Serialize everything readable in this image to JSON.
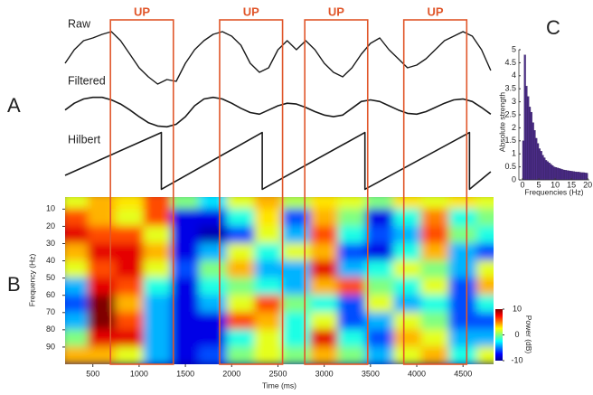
{
  "chart_data": [
    {
      "type": "line",
      "panel": "A",
      "title": "Raw",
      "color": "#1a1a1a",
      "xlim": [
        200,
        4830
      ],
      "ylim": [
        0,
        75
      ],
      "x": [
        200,
        300,
        400,
        500,
        600,
        700,
        800,
        900,
        1000,
        1100,
        1200,
        1300,
        1400,
        1500,
        1600,
        1700,
        1800,
        1900,
        2000,
        2100,
        2200,
        2300,
        2400,
        2500,
        2600,
        2700,
        2800,
        2900,
        3000,
        3100,
        3200,
        3300,
        3400,
        3500,
        3600,
        3700,
        3800,
        3900,
        4000,
        4100,
        4200,
        4300,
        4400,
        4500,
        4600,
        4700,
        4800
      ],
      "values": [
        30,
        45,
        55,
        58,
        62,
        65,
        55,
        40,
        25,
        15,
        7,
        12,
        10,
        30,
        45,
        55,
        62,
        65,
        60,
        50,
        30,
        20,
        25,
        45,
        55,
        45,
        55,
        45,
        30,
        20,
        15,
        25,
        40,
        52,
        58,
        45,
        35,
        25,
        28,
        35,
        45,
        55,
        60,
        65,
        60,
        45,
        22
      ]
    },
    {
      "type": "line",
      "title": "Filtered",
      "color": "#1a1a1a",
      "xlim": [
        200,
        4830
      ],
      "ylim": [
        0,
        45
      ],
      "x": [
        200,
        300,
        400,
        500,
        600,
        700,
        800,
        900,
        1000,
        1100,
        1200,
        1300,
        1400,
        1500,
        1600,
        1700,
        1800,
        1900,
        2000,
        2100,
        2200,
        2300,
        2400,
        2500,
        2600,
        2700,
        2800,
        2900,
        3000,
        3100,
        3200,
        3300,
        3400,
        3500,
        3600,
        3700,
        3800,
        3900,
        4000,
        4100,
        4200,
        4300,
        4400,
        4500,
        4600,
        4700,
        4800
      ],
      "values": [
        25,
        33,
        38,
        40,
        40,
        37,
        32,
        25,
        17,
        10,
        6,
        5,
        8,
        17,
        30,
        38,
        40,
        38,
        33,
        27,
        22,
        20,
        25,
        30,
        33,
        32,
        28,
        23,
        19,
        17,
        19,
        27,
        35,
        37,
        35,
        30,
        25,
        21,
        20,
        23,
        28,
        33,
        37,
        38,
        35,
        28,
        20
      ]
    },
    {
      "type": "line",
      "title": "Hilbert",
      "color": "#1a1a1a",
      "xlim": [
        200,
        4830
      ],
      "ylim": [
        -3.2,
        3.2
      ],
      "x": [
        200,
        1240,
        1240,
        2330,
        2330,
        3440,
        3440,
        4570,
        4570,
        4800
      ],
      "values": [
        -1.6,
        3.14,
        -3.14,
        3.14,
        -3.14,
        3.14,
        -3.14,
        3.14,
        -3.14,
        -1.2
      ]
    },
    {
      "type": "heatmap",
      "panel": "B",
      "xlabel": "Time (ms)",
      "ylabel": "Frequency (Hz)",
      "xlim": [
        200,
        4830
      ],
      "ylim": [
        3,
        100
      ],
      "xticks": [
        500,
        1000,
        1500,
        2000,
        2500,
        3000,
        3500,
        4000,
        4500
      ],
      "yticks": [
        10,
        20,
        30,
        40,
        50,
        60,
        70,
        80,
        90
      ],
      "x": [
        300,
        600,
        900,
        1200,
        1500,
        1800,
        2100,
        2400,
        2700,
        3000,
        3300,
        3600,
        3900,
        4200,
        4500,
        4800
      ],
      "y": [
        5,
        15,
        25,
        35,
        45,
        55,
        65,
        75,
        85,
        95
      ],
      "z": [
        [
          2,
          4,
          3,
          6,
          0,
          -3,
          2,
          4,
          1,
          3,
          2,
          0,
          3,
          2,
          3,
          2
        ],
        [
          6,
          4,
          2,
          6,
          -8,
          -8,
          -2,
          3,
          -6,
          4,
          0,
          -8,
          -2,
          5,
          -2,
          0
        ],
        [
          8,
          6,
          6,
          2,
          -8,
          -9,
          -6,
          2,
          -4,
          6,
          -2,
          -6,
          -4,
          6,
          0,
          -2
        ],
        [
          4,
          8,
          8,
          4,
          -8,
          -4,
          2,
          -2,
          2,
          4,
          -6,
          -8,
          -2,
          4,
          -4,
          -6
        ],
        [
          2,
          6,
          8,
          2,
          -6,
          0,
          4,
          -4,
          -4,
          8,
          -4,
          -2,
          2,
          0,
          -4,
          2
        ],
        [
          -4,
          8,
          6,
          -2,
          -8,
          -2,
          0,
          -2,
          -4,
          4,
          6,
          0,
          -2,
          2,
          -6,
          4
        ],
        [
          -6,
          10,
          4,
          -4,
          -8,
          -4,
          2,
          6,
          0,
          -2,
          -6,
          2,
          -4,
          -2,
          -6,
          -2
        ],
        [
          -4,
          10,
          6,
          -4,
          -8,
          -8,
          6,
          4,
          -2,
          2,
          -6,
          -4,
          2,
          0,
          -6,
          -6
        ],
        [
          0,
          8,
          8,
          -4,
          -8,
          -8,
          -2,
          2,
          -2,
          8,
          -2,
          -6,
          4,
          2,
          -4,
          -4
        ],
        [
          4,
          4,
          2,
          -4,
          -8,
          -6,
          0,
          2,
          0,
          4,
          0,
          -4,
          2,
          4,
          -2,
          2
        ]
      ],
      "colorbar": {
        "label": "Power (dB)",
        "zlim": [
          -10,
          10
        ],
        "ticks": [
          10,
          0,
          -10
        ]
      },
      "annotations": [
        {
          "text": "UP",
          "x": [
            690,
            1370
          ]
        },
        {
          "text": "UP",
          "x": [
            1870,
            2550
          ]
        },
        {
          "text": "UP",
          "x": [
            2790,
            3470
          ]
        },
        {
          "text": "UP",
          "x": [
            3860,
            4540
          ]
        }
      ]
    },
    {
      "type": "histogram",
      "panel": "C",
      "xlabel": "Frequencies (Hz)",
      "ylabel": "Absolute strength",
      "color": "#4b2c88",
      "xlim": [
        -1.1,
        20.5
      ],
      "ylim": [
        0,
        5
      ],
      "xticks": [
        0,
        5,
        10,
        15,
        20
      ],
      "yticks": [
        0,
        0.5,
        1,
        1.5,
        2,
        2.5,
        3,
        3.5,
        4,
        4.5,
        5
      ],
      "bins": [
        0,
        0.5,
        1,
        1.5,
        2,
        2.5,
        3,
        3.5,
        4,
        4.5,
        5,
        5.5,
        6,
        6.5,
        7,
        7.5,
        8,
        8.5,
        9,
        9.5,
        10,
        10.5,
        11,
        11.5,
        12,
        12.5,
        13,
        13.5,
        14,
        14.5,
        15,
        15.5,
        16,
        16.5,
        17,
        17.5,
        18,
        18.5,
        19,
        19.5,
        20
      ],
      "values": [
        1.5,
        4.8,
        3.6,
        3.2,
        2.8,
        2.6,
        2.2,
        1.9,
        1.6,
        1.4,
        1.2,
        1.1,
        0.95,
        0.85,
        0.75,
        0.7,
        0.65,
        0.6,
        0.55,
        0.5,
        0.48,
        0.46,
        0.44,
        0.42,
        0.4,
        0.38,
        0.37,
        0.36,
        0.35,
        0.34,
        0.33,
        0.32,
        0.31,
        0.3,
        0.3,
        0.29,
        0.28,
        0.28,
        0.27,
        0.26
      ]
    }
  ]
}
